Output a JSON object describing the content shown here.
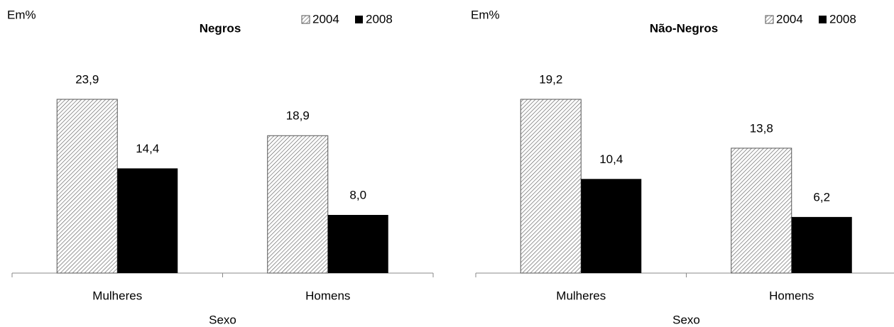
{
  "chart_data": [
    {
      "type": "bar",
      "title": "Negros",
      "unit_label": "Em%",
      "x_label": "Sexo",
      "categories": [
        "Mulheres",
        "Homens"
      ],
      "series": [
        {
          "name": "2004",
          "color": "#555555",
          "pattern": "hatch",
          "values": [
            23.9,
            18.9
          ],
          "value_labels": [
            "23,9",
            "18,9"
          ]
        },
        {
          "name": "2008",
          "color": "#000000",
          "values": [
            14.4,
            8.0
          ],
          "value_labels": [
            "14,4",
            "8,0"
          ]
        }
      ]
    },
    {
      "type": "bar",
      "title": "Não-Negros",
      "unit_label": "Em%",
      "x_label": "Sexo",
      "categories": [
        "Mulheres",
        "Homens"
      ],
      "series": [
        {
          "name": "2004",
          "color": "#555555",
          "pattern": "hatch",
          "values": [
            19.2,
            13.8
          ],
          "value_labels": [
            "19,2",
            "13,8"
          ]
        },
        {
          "name": "2008",
          "color": "#000000",
          "values": [
            10.4,
            6.2
          ],
          "value_labels": [
            "10,4",
            "6,2"
          ]
        }
      ]
    }
  ]
}
